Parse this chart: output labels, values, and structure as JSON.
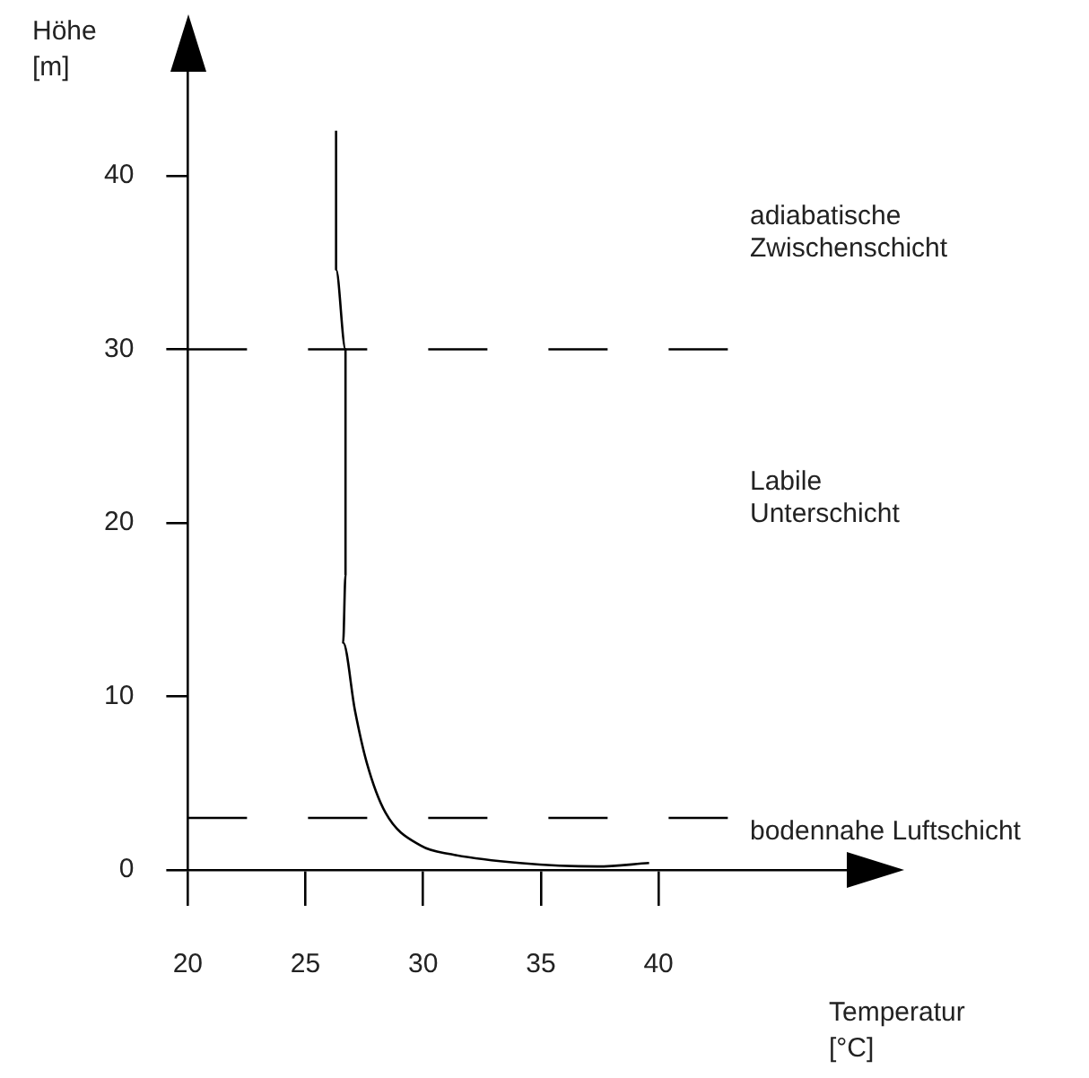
{
  "chart_data": {
    "type": "line",
    "xlabel": "Temperatur\n[°C]",
    "ylabel": "Höhe\n[m]",
    "x": [
      26.3,
      26.3,
      26.7,
      26.7,
      26.7,
      26.6,
      27.1,
      27.6,
      28.4,
      29.9,
      31.2,
      34.1,
      37.4,
      39.6
    ],
    "values": [
      42.6,
      34.6,
      30,
      25.8,
      17,
      13.1,
      9.2,
      6.2,
      3.3,
      1.4,
      0.9,
      0.4,
      0.2,
      0.4
    ],
    "color": "#000000",
    "marker": "none",
    "line_style": "solid",
    "xlim": [
      20,
      48
    ],
    "xticks": [
      20,
      25,
      30,
      35,
      40
    ],
    "ylim": [
      0,
      46
    ],
    "yticks": [
      0,
      10,
      20,
      30,
      40
    ],
    "grid": false,
    "legend": false,
    "ref_lines": [
      {
        "axis": "y",
        "value": 30,
        "color": "#000000",
        "line_style": "dashed"
      },
      {
        "axis": "y",
        "value": 3,
        "color": "#000000",
        "line_style": "dashed"
      }
    ],
    "annotations": [
      "adiabatische\nZwischenschicht",
      "Labile\nUnterschicht",
      "bodennahe Luftschicht"
    ]
  }
}
